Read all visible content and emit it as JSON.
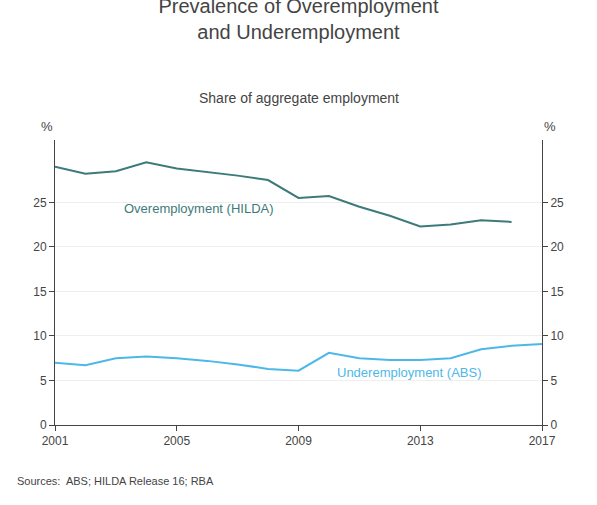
{
  "chart_data": {
    "type": "line",
    "title": "Prevalence of Overemployment\nand Underemployment",
    "subtitle": "Share of aggregate employment",
    "ylabel": "%",
    "y2label": "%",
    "annotations": [
      "Sources:  ABS; HILDA Release 16; RBA"
    ],
    "series": [
      {
        "name": "Overemployment (HILDA)",
        "color": "#3d7a7a",
        "x": [
          2001,
          2002,
          2003,
          2004,
          2005,
          2006,
          2007,
          2008,
          2009,
          2010,
          2011,
          2012,
          2013,
          2014,
          2015,
          2016
        ],
        "values": [
          29.0,
          28.2,
          28.5,
          29.5,
          28.8,
          28.4,
          28.0,
          27.5,
          25.5,
          25.7,
          24.5,
          23.5,
          22.3,
          22.5,
          23.0,
          22.8
        ]
      },
      {
        "name": "Underemployment (ABS)",
        "color": "#4db8e8",
        "x": [
          2001,
          2002,
          2003,
          2004,
          2005,
          2006,
          2007,
          2008,
          2009,
          2010,
          2011,
          2012,
          2013,
          2014,
          2015,
          2016,
          2017
        ],
        "values": [
          7.0,
          6.7,
          7.5,
          7.7,
          7.5,
          7.2,
          6.8,
          6.3,
          6.1,
          8.1,
          7.5,
          7.3,
          7.3,
          7.5,
          8.5,
          8.9,
          9.1
        ]
      }
    ],
    "xlim": [
      2001,
      2017
    ],
    "xticks": [
      2001,
      2005,
      2009,
      2013,
      2017
    ],
    "ylim": [
      0,
      32
    ],
    "yticks": [
      0,
      5,
      10,
      15,
      20,
      25
    ],
    "y2lim": [
      0,
      32
    ],
    "y2ticks": [
      0,
      5,
      10,
      15,
      20,
      25
    ],
    "grid": true
  }
}
